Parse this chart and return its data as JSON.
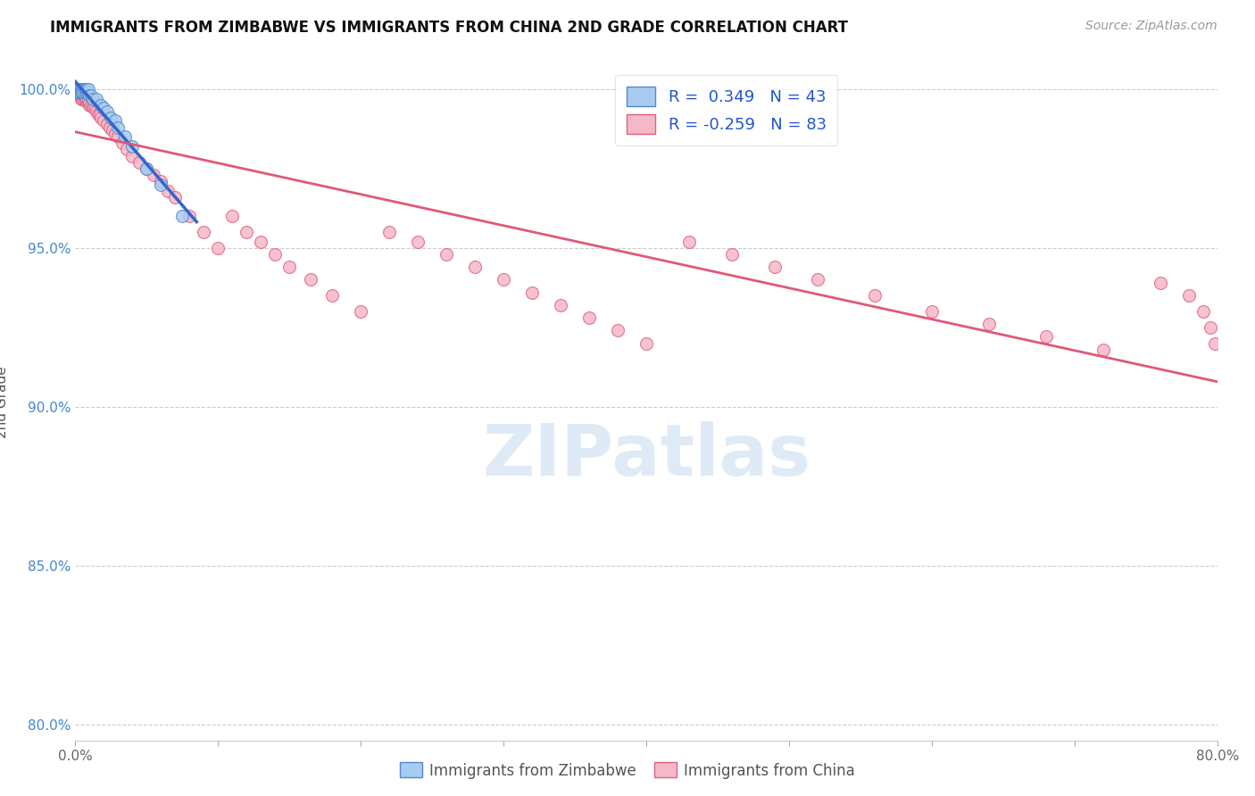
{
  "title": "IMMIGRANTS FROM ZIMBABWE VS IMMIGRANTS FROM CHINA 2ND GRADE CORRELATION CHART",
  "source_text": "Source: ZipAtlas.com",
  "ylabel": "2nd Grade",
  "xlim": [
    0.0,
    0.8
  ],
  "ylim": [
    0.795,
    1.008
  ],
  "yticks": [
    0.8,
    0.85,
    0.9,
    0.95,
    1.0
  ],
  "ytick_labels": [
    "80.0%",
    "85.0%",
    "90.0%",
    "95.0%",
    "100.0%"
  ],
  "xticks": [
    0.0,
    0.1,
    0.2,
    0.3,
    0.4,
    0.5,
    0.6,
    0.7,
    0.8
  ],
  "xtick_labels": [
    "0.0%",
    "",
    "",
    "",
    "",
    "",
    "",
    "",
    "80.0%"
  ],
  "zimbabwe_fill": "#A8CCF0",
  "zimbabwe_edge": "#5588CC",
  "china_fill": "#F5B8C8",
  "china_edge": "#E06080",
  "zimbabwe_line_color": "#3366CC",
  "china_line_color": "#E05878",
  "legend_r_zimbabwe": "0.349",
  "legend_n_zimbabwe": "43",
  "legend_r_china": "-0.259",
  "legend_n_china": "83",
  "watermark": "ZIPatlas",
  "zim_x": [
    0.001,
    0.001,
    0.001,
    0.002,
    0.002,
    0.002,
    0.002,
    0.003,
    0.003,
    0.003,
    0.003,
    0.004,
    0.004,
    0.004,
    0.004,
    0.005,
    0.005,
    0.005,
    0.005,
    0.006,
    0.006,
    0.006,
    0.007,
    0.007,
    0.008,
    0.008,
    0.009,
    0.009,
    0.01,
    0.011,
    0.012,
    0.015,
    0.018,
    0.02,
    0.022,
    0.025,
    0.028,
    0.03,
    0.035,
    0.04,
    0.05,
    0.06,
    0.075
  ],
  "zim_y": [
    1.0,
    0.999,
    1.0,
    1.0,
    0.999,
    1.0,
    1.0,
    0.999,
    1.0,
    1.0,
    1.0,
    0.999,
    1.0,
    1.0,
    1.0,
    0.999,
    1.0,
    1.0,
    0.999,
    1.0,
    1.0,
    0.999,
    1.0,
    0.999,
    0.999,
    1.0,
    0.999,
    1.0,
    0.998,
    0.998,
    0.997,
    0.997,
    0.995,
    0.994,
    0.993,
    0.991,
    0.99,
    0.988,
    0.985,
    0.982,
    0.975,
    0.97,
    0.96
  ],
  "china_x": [
    0.001,
    0.001,
    0.002,
    0.002,
    0.002,
    0.003,
    0.003,
    0.003,
    0.004,
    0.004,
    0.004,
    0.005,
    0.005,
    0.005,
    0.006,
    0.006,
    0.006,
    0.007,
    0.007,
    0.008,
    0.008,
    0.009,
    0.009,
    0.01,
    0.01,
    0.011,
    0.012,
    0.013,
    0.014,
    0.015,
    0.016,
    0.017,
    0.018,
    0.02,
    0.022,
    0.024,
    0.026,
    0.028,
    0.03,
    0.033,
    0.036,
    0.04,
    0.045,
    0.05,
    0.055,
    0.06,
    0.065,
    0.07,
    0.08,
    0.09,
    0.1,
    0.11,
    0.12,
    0.13,
    0.14,
    0.15,
    0.165,
    0.18,
    0.2,
    0.22,
    0.24,
    0.26,
    0.28,
    0.3,
    0.32,
    0.34,
    0.36,
    0.38,
    0.4,
    0.43,
    0.46,
    0.49,
    0.52,
    0.56,
    0.6,
    0.64,
    0.68,
    0.72,
    0.76,
    0.78,
    0.79,
    0.795,
    0.798
  ],
  "china_y": [
    0.999,
    1.0,
    0.998,
    0.999,
    1.0,
    0.998,
    0.999,
    1.0,
    0.997,
    0.998,
    0.999,
    0.997,
    0.998,
    0.999,
    0.997,
    0.998,
    0.999,
    0.997,
    0.998,
    0.996,
    0.997,
    0.996,
    0.997,
    0.995,
    0.996,
    0.995,
    0.995,
    0.994,
    0.994,
    0.993,
    0.992,
    0.992,
    0.991,
    0.99,
    0.989,
    0.988,
    0.987,
    0.986,
    0.985,
    0.983,
    0.981,
    0.979,
    0.977,
    0.975,
    0.973,
    0.971,
    0.968,
    0.966,
    0.96,
    0.955,
    0.95,
    0.96,
    0.955,
    0.952,
    0.948,
    0.944,
    0.94,
    0.935,
    0.93,
    0.955,
    0.952,
    0.948,
    0.944,
    0.94,
    0.936,
    0.932,
    0.928,
    0.924,
    0.92,
    0.952,
    0.948,
    0.944,
    0.94,
    0.935,
    0.93,
    0.926,
    0.922,
    0.918,
    0.939,
    0.935,
    0.93,
    0.925,
    0.92
  ]
}
